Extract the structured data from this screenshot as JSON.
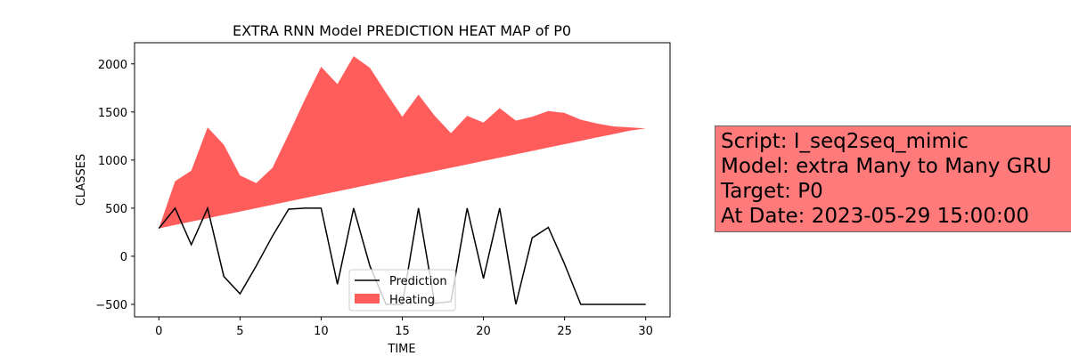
{
  "chart_data": {
    "type": "area",
    "title": "EXTRA RNN Model PREDICTION HEAT MAP of P0",
    "xlabel": "TIME",
    "ylabel": "CLASSES",
    "xlim": [
      -1.5,
      31.5
    ],
    "ylim": [
      -630,
      2220
    ],
    "xticks": [
      0,
      5,
      10,
      15,
      20,
      25,
      30
    ],
    "yticks": [
      -500,
      0,
      500,
      1000,
      1500,
      2000
    ],
    "legend_position": "lower center",
    "colors": {
      "prediction": "#000000",
      "heating": "#ff3333"
    },
    "series": [
      {
        "name": "Prediction",
        "kind": "line",
        "x": [
          0,
          1,
          2,
          3,
          4,
          5,
          6,
          7,
          8,
          9,
          10,
          11,
          12,
          13,
          14,
          15,
          16,
          17,
          18,
          19,
          20,
          21,
          22,
          23,
          24,
          25,
          26,
          27,
          28,
          29,
          30
        ],
        "values": [
          290,
          500,
          120,
          500,
          -210,
          -390,
          -100,
          210,
          490,
          500,
          500,
          -290,
          500,
          -100,
          -500,
          -500,
          500,
          -490,
          -470,
          500,
          -230,
          500,
          -500,
          190,
          300,
          -80,
          -500,
          -500,
          -500,
          -500,
          -500
        ]
      },
      {
        "name": "Heating",
        "kind": "fill_between",
        "x": [
          0,
          1,
          2,
          3,
          4,
          5,
          6,
          7,
          8,
          9,
          10,
          11,
          12,
          13,
          14,
          15,
          16,
          17,
          18,
          19,
          20,
          21,
          22,
          23,
          24,
          25,
          26,
          27,
          28,
          29,
          30
        ],
        "lower": [
          290,
          325,
          360,
          395,
          430,
          465,
          500,
          535,
          570,
          605,
          640,
          675,
          710,
          745,
          780,
          815,
          850,
          885,
          920,
          955,
          990,
          1025,
          1060,
          1095,
          1130,
          1165,
          1200,
          1235,
          1270,
          1305,
          1330
        ],
        "upper": [
          290,
          780,
          890,
          1340,
          1160,
          840,
          760,
          920,
          1270,
          1630,
          1970,
          1790,
          2080,
          1960,
          1700,
          1450,
          1680,
          1460,
          1280,
          1460,
          1390,
          1540,
          1410,
          1450,
          1510,
          1490,
          1420,
          1380,
          1350,
          1340,
          1330
        ]
      }
    ]
  },
  "info_box": {
    "line1": "Script: I_seq2seq_mimic",
    "line2": "Model: extra Many to Many GRU",
    "line3": "Target: P0",
    "line4": "At Date: 2023-05-29 15:00:00",
    "color": "#ff7b7b"
  }
}
